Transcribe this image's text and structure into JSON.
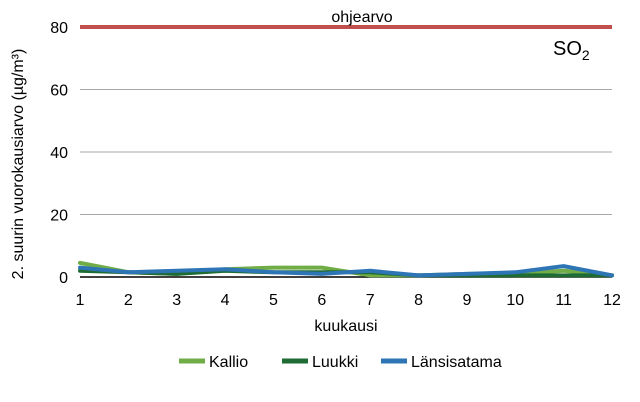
{
  "chart_data": {
    "type": "line",
    "xlabel": "kuukausi",
    "ylabel": "2. suurin vuorokausiarvo (µg/m³)",
    "species": {
      "main": "SO",
      "sub": "2"
    },
    "x": [
      1,
      2,
      3,
      4,
      5,
      6,
      7,
      8,
      9,
      10,
      11,
      12
    ],
    "xlim": [
      1,
      12
    ],
    "ylim": [
      0,
      80
    ],
    "yticks": [
      0,
      20,
      40,
      60,
      80
    ],
    "grid": "horizontal",
    "legend_position": "bottom",
    "guideline": {
      "label": "ohjearvo",
      "value": 80,
      "color": "#c0504d"
    },
    "series": [
      {
        "name": "Kallio",
        "color": "#70ad47",
        "values": [
          4.5,
          1.5,
          1.0,
          2.5,
          3.0,
          3.0,
          0.5,
          0.5,
          1.0,
          1.0,
          2.0,
          0.5
        ]
      },
      {
        "name": "Luukki",
        "color": "#1e6b33",
        "values": [
          2.0,
          1.5,
          1.0,
          2.0,
          1.5,
          1.5,
          1.5,
          0.5,
          0.5,
          0.5,
          0.5,
          0.5
        ]
      },
      {
        "name": "Länsisatama",
        "color": "#2e75b6",
        "values": [
          3.0,
          1.5,
          2.0,
          2.5,
          1.5,
          1.0,
          2.0,
          0.5,
          1.0,
          1.5,
          3.5,
          0.5
        ]
      }
    ]
  }
}
